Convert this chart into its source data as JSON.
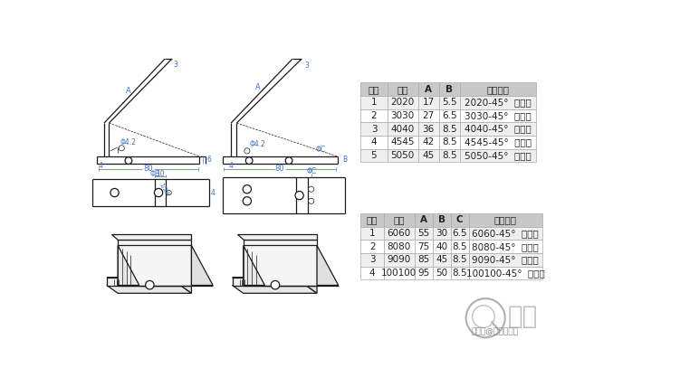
{
  "bg_color": "#ffffff",
  "table1_header": [
    "序号",
    "型号",
    "A",
    "B",
    "订货编号"
  ],
  "table1_rows": [
    [
      "1",
      "2020",
      "17",
      "5.5",
      "2020-45°  角支架"
    ],
    [
      "2",
      "3030",
      "27",
      "6.5",
      "3030-45°  角支架"
    ],
    [
      "3",
      "4040",
      "36",
      "8.5",
      "4040-45°  角支架"
    ],
    [
      "4",
      "4545",
      "42",
      "8.5",
      "4545-45°  角支架"
    ],
    [
      "5",
      "5050",
      "45",
      "8.5",
      "5050-45°  角支架"
    ]
  ],
  "table2_header": [
    "序号",
    "型号",
    "A",
    "B",
    "C",
    "订货编号"
  ],
  "table2_rows": [
    [
      "1",
      "6060",
      "55",
      "30",
      "6.5",
      "6060-45°  角支架"
    ],
    [
      "2",
      "8080",
      "75",
      "40",
      "8.5",
      "8080-45°  角支架"
    ],
    [
      "3",
      "9090",
      "85",
      "45",
      "8.5",
      "9090-45°  角支架"
    ],
    [
      "4",
      "100100",
      "95",
      "50",
      "8.5",
      "100100-45°  角支架"
    ]
  ],
  "header_bg": "#c8c8c8",
  "row_bg_odd": "#efefef",
  "row_bg_even": "#ffffff",
  "text_color": "#222222",
  "dim_color": "#4472c4",
  "draw_color": "#1a1a1a",
  "footer_text": "搜狐号@启域铝制品",
  "logo_text": "启域"
}
